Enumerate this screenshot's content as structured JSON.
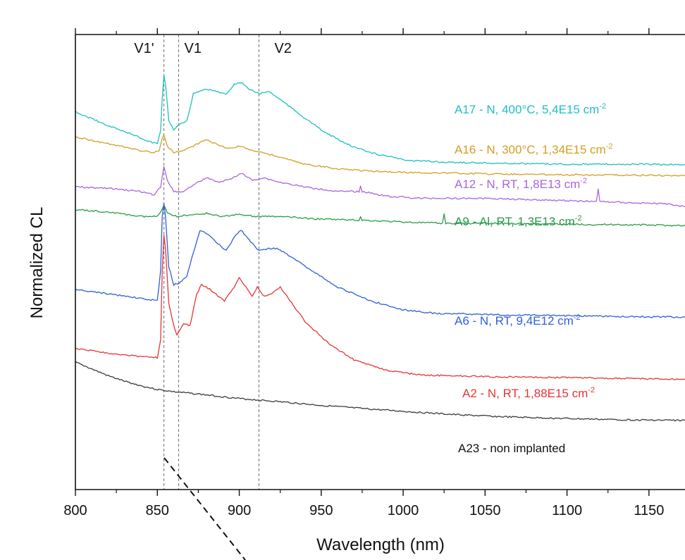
{
  "chart_data": {
    "type": "line",
    "xlabel": "Wavelength (nm)",
    "ylabel": "Normalized CL",
    "xlim": [
      800,
      1172
    ],
    "x_ticks": [
      800,
      850,
      900,
      950,
      1000,
      1050,
      1100,
      1150
    ],
    "y_ticks_labeled": false,
    "grid": false,
    "legend": "inline labels at right",
    "reference_lines": [
      {
        "name": "V1'",
        "x": 854
      },
      {
        "name": "V1",
        "x": 863
      },
      {
        "name": "V2",
        "x": 912
      }
    ],
    "series": [
      {
        "name": "A17 - N, 400°C, 5,4E15 cm",
        "superscript": "-2",
        "color": "#1fbfbf",
        "points": [
          [
            800,
            0.83
          ],
          [
            820,
            0.8
          ],
          [
            835,
            0.78
          ],
          [
            845,
            0.765
          ],
          [
            850,
            0.76
          ],
          [
            852,
            0.79
          ],
          [
            853,
            0.86
          ],
          [
            854,
            0.91
          ],
          [
            855,
            0.89
          ],
          [
            857,
            0.81
          ],
          [
            860,
            0.79
          ],
          [
            864,
            0.805
          ],
          [
            868,
            0.81
          ],
          [
            872,
            0.87
          ],
          [
            876,
            0.875
          ],
          [
            880,
            0.88
          ],
          [
            886,
            0.875
          ],
          [
            892,
            0.87
          ],
          [
            897,
            0.89
          ],
          [
            901,
            0.895
          ],
          [
            906,
            0.88
          ],
          [
            912,
            0.87
          ],
          [
            918,
            0.875
          ],
          [
            924,
            0.86
          ],
          [
            935,
            0.83
          ],
          [
            950,
            0.79
          ],
          [
            965,
            0.76
          ],
          [
            980,
            0.74
          ],
          [
            1000,
            0.725
          ],
          [
            1020,
            0.72
          ],
          [
            1060,
            0.717
          ],
          [
            1100,
            0.715
          ],
          [
            1140,
            0.715
          ],
          [
            1172,
            0.714
          ]
        ]
      },
      {
        "name": "A16 - N, 300°C, 1,34E15 cm",
        "superscript": "-2",
        "color": "#d2a020",
        "points": [
          [
            800,
            0.775
          ],
          [
            820,
            0.76
          ],
          [
            840,
            0.745
          ],
          [
            848,
            0.74
          ],
          [
            851,
            0.745
          ],
          [
            853,
            0.77
          ],
          [
            854,
            0.78
          ],
          [
            856,
            0.755
          ],
          [
            860,
            0.74
          ],
          [
            866,
            0.745
          ],
          [
            872,
            0.755
          ],
          [
            880,
            0.77
          ],
          [
            888,
            0.755
          ],
          [
            895,
            0.75
          ],
          [
            901,
            0.755
          ],
          [
            908,
            0.745
          ],
          [
            915,
            0.74
          ],
          [
            925,
            0.73
          ],
          [
            940,
            0.715
          ],
          [
            960,
            0.705
          ],
          [
            980,
            0.7
          ],
          [
            1000,
            0.697
          ],
          [
            1050,
            0.694
          ],
          [
            1100,
            0.692
          ],
          [
            1172,
            0.69
          ]
        ]
      },
      {
        "name": "A12 - N, RT, 1,8E13 cm",
        "superscript": "-2",
        "color": "#a866dd",
        "points": [
          [
            800,
            0.665
          ],
          [
            820,
            0.662
          ],
          [
            840,
            0.655
          ],
          [
            848,
            0.648
          ],
          [
            852,
            0.665
          ],
          [
            854,
            0.71
          ],
          [
            856,
            0.68
          ],
          [
            860,
            0.655
          ],
          [
            866,
            0.655
          ],
          [
            872,
            0.67
          ],
          [
            880,
            0.685
          ],
          [
            888,
            0.675
          ],
          [
            895,
            0.683
          ],
          [
            901,
            0.695
          ],
          [
            908,
            0.68
          ],
          [
            915,
            0.685
          ],
          [
            925,
            0.675
          ],
          [
            940,
            0.665
          ],
          [
            960,
            0.655
          ],
          [
            973,
            0.655
          ],
          [
            974,
            0.668
          ],
          [
            975,
            0.655
          ],
          [
            990,
            0.645
          ],
          [
            1010,
            0.64
          ],
          [
            1050,
            0.64
          ],
          [
            1100,
            0.635
          ],
          [
            1118,
            0.633
          ],
          [
            1119,
            0.66
          ],
          [
            1120,
            0.633
          ],
          [
            1140,
            0.63
          ],
          [
            1160,
            0.628
          ],
          [
            1172,
            0.622
          ]
        ]
      },
      {
        "name": "A9 - Al, RT, 1,3E13 cm",
        "superscript": "-2",
        "color": "#2a9a48",
        "points": [
          [
            800,
            0.615
          ],
          [
            820,
            0.61
          ],
          [
            840,
            0.6
          ],
          [
            850,
            0.6
          ],
          [
            853,
            0.615
          ],
          [
            854,
            0.625
          ],
          [
            856,
            0.608
          ],
          [
            862,
            0.6
          ],
          [
            870,
            0.603
          ],
          [
            880,
            0.607
          ],
          [
            890,
            0.6
          ],
          [
            900,
            0.605
          ],
          [
            910,
            0.6
          ],
          [
            925,
            0.6
          ],
          [
            945,
            0.595
          ],
          [
            973,
            0.592
          ],
          [
            974,
            0.6
          ],
          [
            975,
            0.592
          ],
          [
            1000,
            0.588
          ],
          [
            1024,
            0.585
          ],
          [
            1025,
            0.605
          ],
          [
            1026,
            0.585
          ],
          [
            1060,
            0.585
          ],
          [
            1100,
            0.583
          ],
          [
            1140,
            0.582
          ],
          [
            1172,
            0.58
          ]
        ]
      },
      {
        "name": "A6 - N, RT, 9,4E12 cm",
        "superscript": "-2",
        "color": "#2f5ed8",
        "points": [
          [
            800,
            0.44
          ],
          [
            820,
            0.43
          ],
          [
            840,
            0.42
          ],
          [
            850,
            0.415
          ],
          [
            852,
            0.48
          ],
          [
            853,
            0.6
          ],
          [
            854,
            0.63
          ],
          [
            855,
            0.6
          ],
          [
            857,
            0.49
          ],
          [
            860,
            0.45
          ],
          [
            864,
            0.455
          ],
          [
            868,
            0.47
          ],
          [
            872,
            0.52
          ],
          [
            876,
            0.57
          ],
          [
            881,
            0.56
          ],
          [
            887,
            0.54
          ],
          [
            892,
            0.525
          ],
          [
            897,
            0.555
          ],
          [
            901,
            0.57
          ],
          [
            907,
            0.545
          ],
          [
            912,
            0.525
          ],
          [
            918,
            0.53
          ],
          [
            923,
            0.53
          ],
          [
            930,
            0.515
          ],
          [
            945,
            0.48
          ],
          [
            960,
            0.445
          ],
          [
            980,
            0.415
          ],
          [
            1000,
            0.395
          ],
          [
            1020,
            0.387
          ],
          [
            1060,
            0.384
          ],
          [
            1100,
            0.382
          ],
          [
            1140,
            0.38
          ],
          [
            1172,
            0.379
          ]
        ]
      },
      {
        "name": "A2 - N, RT, 1,88E15 cm",
        "superscript": "-2",
        "color": "#e53535",
        "points": [
          [
            800,
            0.31
          ],
          [
            820,
            0.3
          ],
          [
            840,
            0.292
          ],
          [
            850,
            0.29
          ],
          [
            852,
            0.33
          ],
          [
            853,
            0.48
          ],
          [
            854,
            0.56
          ],
          [
            855,
            0.53
          ],
          [
            857,
            0.41
          ],
          [
            860,
            0.36
          ],
          [
            862,
            0.34
          ],
          [
            866,
            0.365
          ],
          [
            870,
            0.36
          ],
          [
            874,
            0.43
          ],
          [
            877,
            0.45
          ],
          [
            882,
            0.44
          ],
          [
            887,
            0.425
          ],
          [
            891,
            0.415
          ],
          [
            896,
            0.44
          ],
          [
            900,
            0.465
          ],
          [
            904,
            0.445
          ],
          [
            908,
            0.425
          ],
          [
            911,
            0.445
          ],
          [
            915,
            0.425
          ],
          [
            920,
            0.43
          ],
          [
            925,
            0.445
          ],
          [
            930,
            0.42
          ],
          [
            940,
            0.37
          ],
          [
            955,
            0.32
          ],
          [
            970,
            0.285
          ],
          [
            990,
            0.262
          ],
          [
            1010,
            0.252
          ],
          [
            1050,
            0.248
          ],
          [
            1100,
            0.246
          ],
          [
            1140,
            0.244
          ],
          [
            1172,
            0.242
          ]
        ]
      },
      {
        "name": "A23 - non implanted",
        "superscript": "",
        "color": "#3a3a3a",
        "points": [
          [
            800,
            0.28
          ],
          [
            810,
            0.265
          ],
          [
            820,
            0.25
          ],
          [
            830,
            0.238
          ],
          [
            840,
            0.228
          ],
          [
            850,
            0.22
          ],
          [
            860,
            0.215
          ],
          [
            875,
            0.21
          ],
          [
            900,
            0.2
          ],
          [
            925,
            0.193
          ],
          [
            950,
            0.185
          ],
          [
            975,
            0.178
          ],
          [
            1000,
            0.172
          ],
          [
            1030,
            0.165
          ],
          [
            1060,
            0.16
          ],
          [
            1100,
            0.156
          ],
          [
            1140,
            0.153
          ],
          [
            1172,
            0.152
          ]
        ]
      }
    ]
  }
}
